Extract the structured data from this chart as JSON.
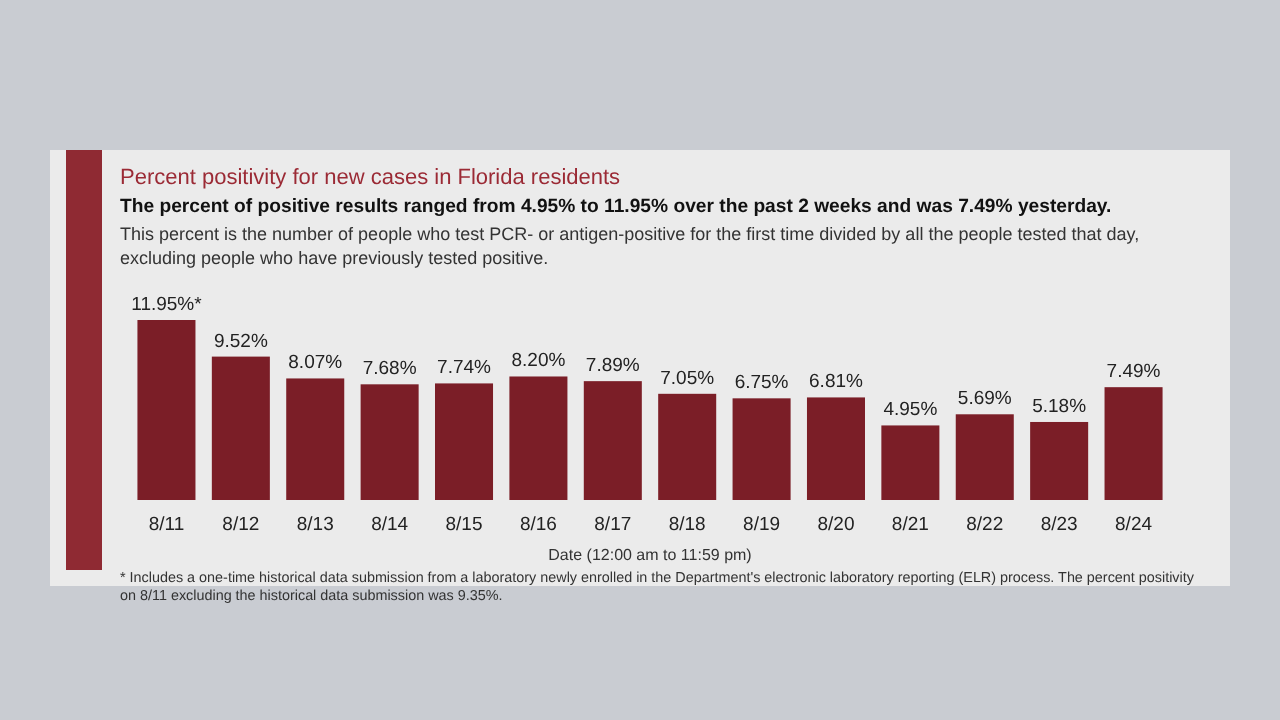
{
  "chart_data": {
    "type": "bar",
    "title": "Percent positivity for new cases in Florida residents",
    "subtitle": "The percent of positive results ranged from 4.95% to 11.95% over the past 2 weeks and was 7.49% yesterday.",
    "annotations": [
      "This percent is the number of people who test PCR- or antigen-positive for the first time divided by all the people tested that day, excluding people who have previously tested positive.",
      "* Includes a one-time historical data submission from a laboratory newly enrolled in the Department's electronic laboratory reporting (ELR) process. The percent positivity on 8/11 excluding the historical data submission was 9.35%."
    ],
    "xlabel": "Date (12:00 am to 11:59 pm)",
    "categories": [
      "8/11",
      "8/12",
      "8/13",
      "8/14",
      "8/15",
      "8/16",
      "8/17",
      "8/18",
      "8/19",
      "8/20",
      "8/21",
      "8/22",
      "8/23",
      "8/24"
    ],
    "values": [
      11.95,
      9.52,
      8.07,
      7.68,
      7.74,
      8.2,
      7.89,
      7.05,
      6.75,
      6.81,
      4.95,
      5.69,
      5.18,
      7.49
    ],
    "value_labels": [
      "11.95%*",
      "9.52%",
      "8.07%",
      "7.68%",
      "7.74%",
      "8.20%",
      "7.89%",
      "7.05%",
      "6.75%",
      "6.81%",
      "4.95%",
      "5.69%",
      "5.18%",
      "7.49%"
    ],
    "color": "#7b1e27"
  }
}
